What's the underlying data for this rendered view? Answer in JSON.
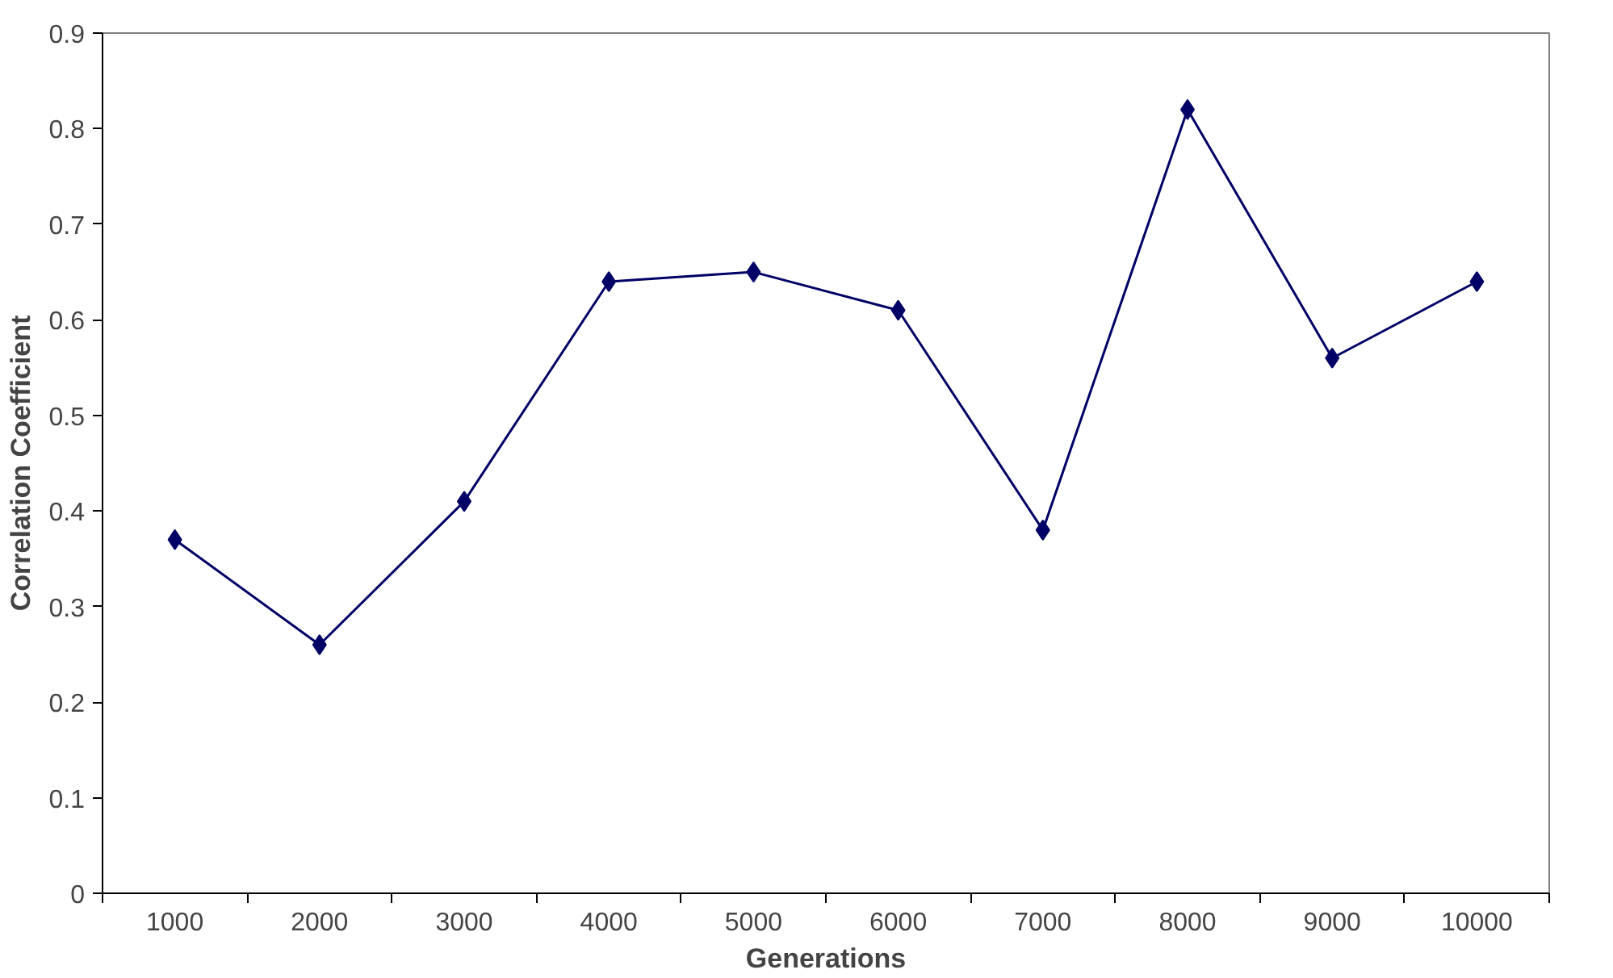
{
  "chart_data": {
    "type": "line",
    "xlabel": "Generations",
    "ylabel": "Correlation Coefficient",
    "categories": [
      "1000",
      "2000",
      "3000",
      "4000",
      "5000",
      "6000",
      "7000",
      "8000",
      "9000",
      "10000"
    ],
    "series": [
      {
        "color": "#000066",
        "values": [
          0.37,
          0.26,
          0.41,
          0.64,
          0.65,
          0.61,
          0.38,
          0.82,
          0.56,
          0.64
        ]
      }
    ],
    "ylim": [
      0,
      0.9
    ],
    "yticks": [
      0,
      0.1,
      0.2,
      0.3,
      0.4,
      0.5,
      0.6,
      0.7,
      0.8,
      0.9
    ],
    "grid": false,
    "marker": "diamond",
    "line_style": "solid"
  }
}
